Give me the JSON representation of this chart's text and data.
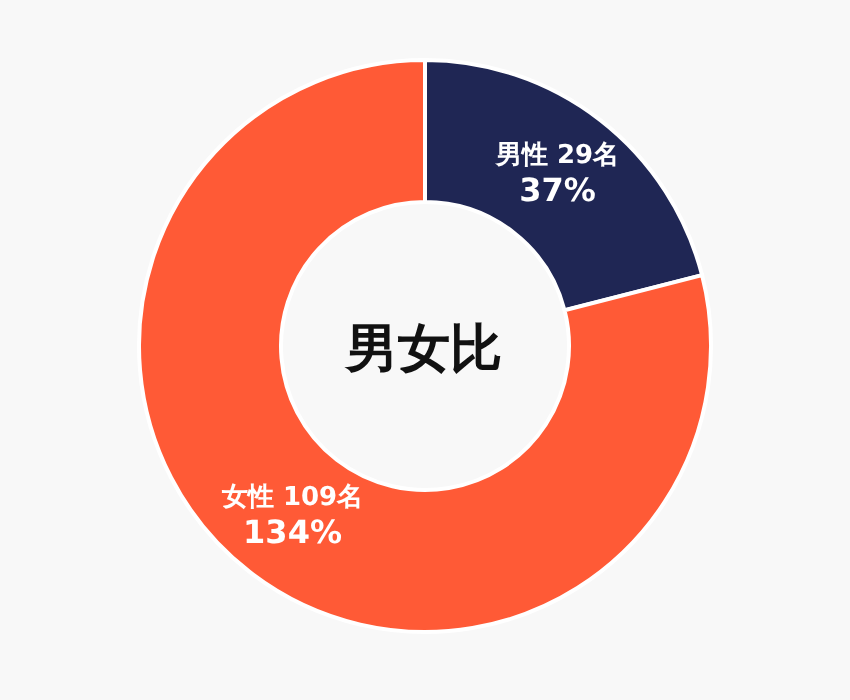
{
  "chart_data": {
    "type": "donut",
    "title": "男女比",
    "categories": [
      "男性",
      "女性"
    ],
    "values": [
      29,
      109
    ],
    "value_labels": [
      "29名",
      "109名"
    ],
    "colors": [
      "#1f2654",
      "#ff5a36"
    ],
    "annotations": [
      {
        "text": "37%",
        "x": "男性"
      },
      {
        "text": "134%",
        "x": "女性"
      }
    ]
  }
}
